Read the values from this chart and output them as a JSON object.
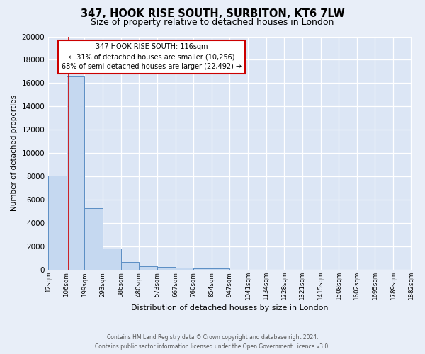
{
  "title": "347, HOOK RISE SOUTH, SURBITON, KT6 7LW",
  "subtitle": "Size of property relative to detached houses in London",
  "xlabel": "Distribution of detached houses by size in London",
  "ylabel": "Number of detached properties",
  "footer_line1": "Contains HM Land Registry data © Crown copyright and database right 2024.",
  "footer_line2": "Contains public sector information licensed under the Open Government Licence v3.0.",
  "annotation_title": "347 HOOK RISE SOUTH: 116sqm",
  "annotation_line2": "← 31% of detached houses are smaller (10,256)",
  "annotation_line3": "68% of semi-detached houses are larger (22,492) →",
  "property_size": 116,
  "bin_edges": [
    12,
    106,
    199,
    293,
    386,
    480,
    573,
    667,
    760,
    854,
    947,
    1041,
    1134,
    1228,
    1321,
    1415,
    1508,
    1602,
    1695,
    1789,
    1882
  ],
  "bin_labels": [
    "12sqm",
    "106sqm",
    "199sqm",
    "293sqm",
    "386sqm",
    "480sqm",
    "573sqm",
    "667sqm",
    "760sqm",
    "854sqm",
    "947sqm",
    "1041sqm",
    "1134sqm",
    "1228sqm",
    "1321sqm",
    "1415sqm",
    "1508sqm",
    "1602sqm",
    "1695sqm",
    "1789sqm",
    "1882sqm"
  ],
  "bar_heights": [
    8100,
    16600,
    5300,
    1850,
    700,
    300,
    230,
    200,
    160,
    130,
    0,
    0,
    0,
    0,
    0,
    0,
    0,
    0,
    0,
    0
  ],
  "bar_color": "#c5d8f0",
  "bar_edge_color": "#5b8ec4",
  "vline_color": "#cc0000",
  "vline_x": 116,
  "ylim": [
    0,
    20000
  ],
  "yticks": [
    0,
    2000,
    4000,
    6000,
    8000,
    10000,
    12000,
    14000,
    16000,
    18000,
    20000
  ],
  "bg_color": "#e8eef8",
  "plot_bg_color": "#dce6f5",
  "annotation_box_color": "#ffffff",
  "annotation_box_edge": "#cc0000",
  "grid_color": "#ffffff",
  "title_fontsize": 10.5,
  "subtitle_fontsize": 9
}
